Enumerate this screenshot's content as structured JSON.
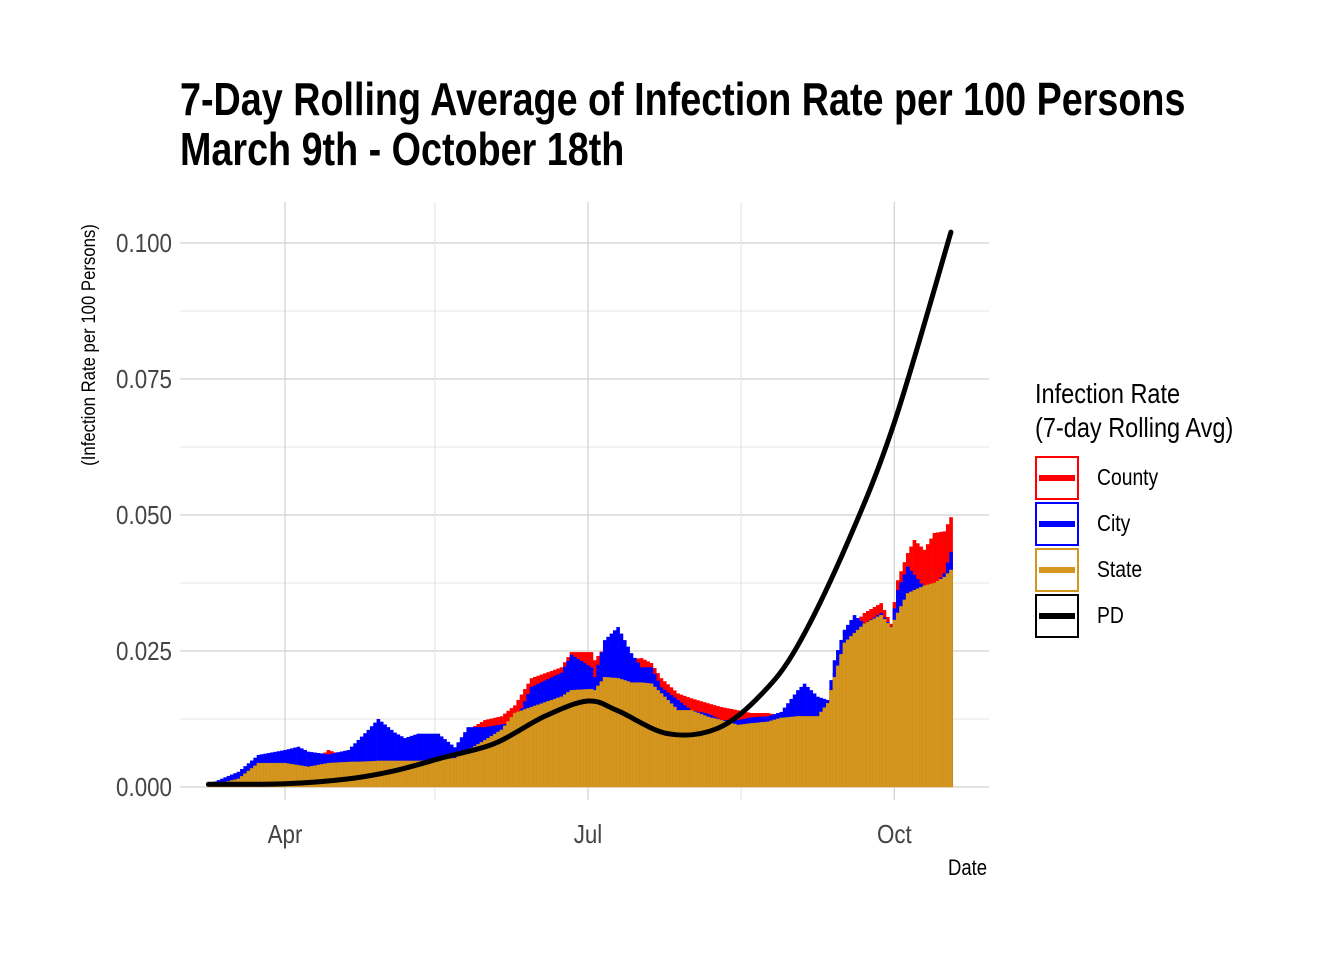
{
  "chart_data": {
    "type": "bar",
    "title": "7-Day Rolling Average of Infection Rate per 100 Persons",
    "subtitle": "March 9th - October 18th",
    "xlabel": "Date",
    "ylabel": "(Infection Rate per 100 Persons)",
    "ylim": [
      0,
      0.1
    ],
    "yticks": [
      "0.000",
      "0.025",
      "0.050",
      "0.075",
      "0.100"
    ],
    "xticks": [
      "Apr",
      "Jul",
      "Oct"
    ],
    "grid": true,
    "legend": {
      "title_line1": "Infection Rate",
      "title_line2": "(7-day Rolling Avg)",
      "placement": "right",
      "entries": [
        {
          "name": "County",
          "color": "#ff0000"
        },
        {
          "name": "City",
          "color": "#0000ff"
        },
        {
          "name": "State",
          "color": "#d4961e"
        },
        {
          "name": "PD",
          "color": "#000000"
        }
      ]
    },
    "bar_columns": [
      "date",
      "County",
      "City",
      "State"
    ],
    "bar_rows": [
      [
        "Mar 9",
        0.0003,
        0.0005,
        0.0002
      ],
      [
        "Mar 18",
        0.002,
        0.0028,
        0.0015
      ],
      [
        "Mar 24",
        0.0045,
        0.0059,
        0.0044
      ],
      [
        "Apr 1",
        0.0045,
        0.0068,
        0.0044
      ],
      [
        "Apr 5",
        0.004,
        0.0074,
        0.004
      ],
      [
        "Apr 8",
        0.004,
        0.0065,
        0.0037
      ],
      [
        "Apr 14",
        0.0068,
        0.006,
        0.0044
      ],
      [
        "Apr 20",
        0.0055,
        0.0068,
        0.0046
      ],
      [
        "Apr 26",
        0.005,
        0.0105,
        0.0047
      ],
      [
        "Apr 29",
        0.005,
        0.0125,
        0.0048
      ],
      [
        "May 4",
        0.005,
        0.01,
        0.0048
      ],
      [
        "May 7",
        0.005,
        0.009,
        0.0048
      ],
      [
        "May 11",
        0.005,
        0.0098,
        0.0048
      ],
      [
        "May 17",
        0.0055,
        0.0098,
        0.005
      ],
      [
        "May 22",
        0.006,
        0.0073,
        0.0053
      ],
      [
        "May 26",
        0.0105,
        0.011,
        0.0068
      ],
      [
        "May 31",
        0.0123,
        0.011,
        0.0086
      ],
      [
        "Jun 5",
        0.013,
        0.0115,
        0.0105
      ],
      [
        "Jun 9",
        0.015,
        0.0118,
        0.0136
      ],
      [
        "Jun 14",
        0.02,
        0.0184,
        0.0147
      ],
      [
        "Jun 23",
        0.022,
        0.021,
        0.0166
      ],
      [
        "Jun 26",
        0.0248,
        0.0243,
        0.0178
      ],
      [
        "Jul 2",
        0.0248,
        0.022,
        0.018
      ],
      [
        "Jul 3",
        0.0233,
        0.0202,
        0.0178
      ],
      [
        "Jul 6",
        0.0257,
        0.027,
        0.0202
      ],
      [
        "Jul 10",
        0.025,
        0.0294,
        0.02
      ],
      [
        "Jul 14",
        0.0235,
        0.0246,
        0.0192
      ],
      [
        "Jul 17",
        0.0237,
        0.022,
        0.0192
      ],
      [
        "Jul 20",
        0.0228,
        0.022,
        0.019
      ],
      [
        "Jul 23",
        0.02,
        0.0183,
        0.0172
      ],
      [
        "Jul 28",
        0.0172,
        0.016,
        0.0141
      ],
      [
        "Aug 1",
        0.0163,
        0.0141,
        0.0141
      ],
      [
        "Aug 6",
        0.0154,
        0.0135,
        0.0129
      ],
      [
        "Aug 10",
        0.0147,
        0.0123,
        0.0123
      ],
      [
        "Aug 15",
        0.0141,
        0.0123,
        0.0114
      ],
      [
        "Aug 19",
        0.0136,
        0.0128,
        0.0117
      ],
      [
        "Aug 24",
        0.0136,
        0.013,
        0.012
      ],
      [
        "Aug 28",
        0.013,
        0.0138,
        0.0127
      ],
      [
        "Sep 2",
        0.013,
        0.0178,
        0.013
      ],
      [
        "Sep 4",
        0.013,
        0.019,
        0.013
      ],
      [
        "Sep 8",
        0.014,
        0.0166,
        0.013
      ],
      [
        "Sep 11",
        0.015,
        0.016,
        0.0154
      ],
      [
        "Sep 13",
        0.021,
        0.0233,
        0.0202
      ],
      [
        "Sep 16",
        0.027,
        0.0289,
        0.0265
      ],
      [
        "Sep 19",
        0.03,
        0.0316,
        0.0283
      ],
      [
        "Sep 22",
        0.032,
        0.03,
        0.03
      ],
      [
        "Sep 27",
        0.0338,
        0.032,
        0.0316
      ],
      [
        "Sep 30",
        0.03,
        0.0295,
        0.0294
      ],
      [
        "Oct 2",
        0.038,
        0.0362,
        0.032
      ],
      [
        "Oct 5",
        0.043,
        0.0405,
        0.0356
      ],
      [
        "Oct 7",
        0.0454,
        0.039,
        0.0362
      ],
      [
        "Oct 10",
        0.0436,
        0.0366,
        0.037
      ],
      [
        "Oct 13",
        0.0467,
        0.037,
        0.0375
      ],
      [
        "Oct 16",
        0.047,
        0.0393,
        0.0386
      ],
      [
        "Oct 18",
        0.0496,
        0.0432,
        0.0399
      ]
    ],
    "line_series": {
      "name": "PD",
      "points": [
        [
          "Mar 9",
          0.0005
        ],
        [
          "Apr 1",
          0.0006
        ],
        [
          "Apr 20",
          0.0015
        ],
        [
          "May 4",
          0.003
        ],
        [
          "May 19",
          0.0055
        ],
        [
          "Jun 3",
          0.008
        ],
        [
          "Jun 18",
          0.013
        ],
        [
          "Jul 1",
          0.0158
        ],
        [
          "Jul 10",
          0.014
        ],
        [
          "Jul 25",
          0.0098
        ],
        [
          "Aug 9",
          0.0108
        ],
        [
          "Aug 22",
          0.017
        ],
        [
          "Sep 2",
          0.026
        ],
        [
          "Sep 17",
          0.045
        ],
        [
          "Oct 1",
          0.067
        ],
        [
          "Oct 18",
          0.102
        ]
      ]
    }
  }
}
